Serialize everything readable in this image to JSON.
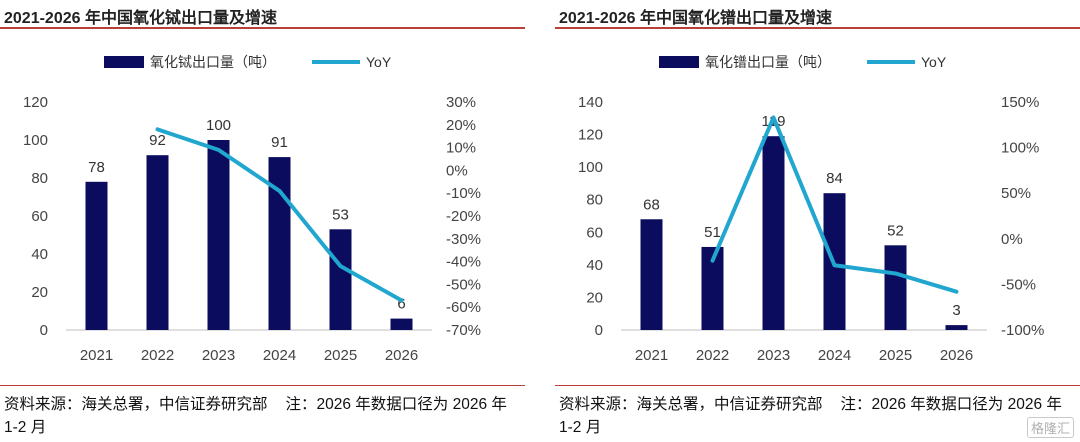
{
  "colors": {
    "bar": "#0b0c5e",
    "line": "#21a7cf",
    "rule": "#b9403a"
  },
  "watermark": "格隆汇",
  "chart_data": [
    {
      "type": "bar",
      "title": "2021-2026 年中国氧化铽出口量及增速",
      "categories": [
        "2021",
        "2022",
        "2023",
        "2024",
        "2025",
        "2026"
      ],
      "series": [
        {
          "name": "氧化铽出口量（吨）",
          "type": "bar",
          "axis": "left",
          "values": [
            78,
            92,
            100,
            91,
            53,
            6
          ]
        },
        {
          "name": "YoY",
          "type": "line",
          "axis": "right",
          "values": [
            null,
            18,
            9,
            -9,
            -42,
            -57
          ]
        }
      ],
      "ylim": [
        0,
        120
      ],
      "yticks": [
        0,
        20,
        40,
        60,
        80,
        100,
        120
      ],
      "y2lim": [
        -70,
        30
      ],
      "y2ticks": [
        30,
        20,
        10,
        0,
        -10,
        -20,
        -30,
        -40,
        -50,
        -60,
        -70
      ],
      "legend": "top",
      "grid": false,
      "source": "资料来源：海关总署，中信证券研究部",
      "note": "注：2026 年数据口径为 2026 年 1-2 月"
    },
    {
      "type": "bar",
      "title": "2021-2026 年中国氧化镨出口量及增速",
      "categories": [
        "2021",
        "2022",
        "2023",
        "2024",
        "2025",
        "2026"
      ],
      "series": [
        {
          "name": "氧化镨出口量（吨）",
          "type": "bar",
          "axis": "left",
          "values": [
            68,
            51,
            119,
            84,
            52,
            3
          ]
        },
        {
          "name": "YoY",
          "type": "line",
          "axis": "right",
          "values": [
            null,
            -24,
            133,
            -29,
            -38,
            -58
          ]
        }
      ],
      "ylim": [
        0,
        140
      ],
      "yticks": [
        0,
        20,
        40,
        60,
        80,
        100,
        120,
        140
      ],
      "y2lim": [
        -100,
        150
      ],
      "y2ticks": [
        150,
        100,
        50,
        0,
        -50,
        -100
      ],
      "legend": "top",
      "grid": false,
      "source": "资料来源：海关总署，中信证券研究部",
      "note": "注：2026 年数据口径为 2026 年 1-2 月"
    }
  ]
}
